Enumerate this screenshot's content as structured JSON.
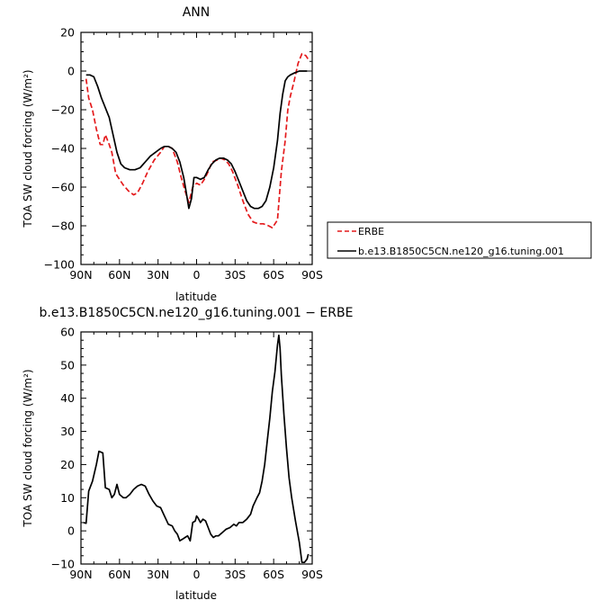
{
  "chart_data": [
    {
      "type": "line",
      "title": "ANN",
      "xlabel": "latitude",
      "ylabel": "TOA SW cloud forcing (W/m²)",
      "xlim": [
        90,
        -90
      ],
      "ylim": [
        -100,
        20
      ],
      "x_ticks": [
        90,
        60,
        30,
        0,
        -30,
        -60,
        -90
      ],
      "x_tick_labels": [
        "90N",
        "60N",
        "30N",
        "0",
        "30S",
        "60S",
        "90S"
      ],
      "y_ticks": [
        -100,
        -80,
        -60,
        -40,
        -20,
        0,
        20
      ],
      "y_tick_labels": [
        "−100",
        "−80",
        "−60",
        "−40",
        "−20",
        "0",
        "20"
      ],
      "legend_position": "right",
      "series": [
        {
          "name": "ERBE",
          "color": "#e41a1c",
          "dash": "dashed",
          "points": [
            [
              86,
              -4
            ],
            [
              84,
              -14
            ],
            [
              81,
              -20
            ],
            [
              78,
              -30
            ],
            [
              75,
              -38
            ],
            [
              73,
              -38
            ],
            [
              71,
              -33
            ],
            [
              68,
              -38
            ],
            [
              66,
              -42
            ],
            [
              63,
              -53
            ],
            [
              60,
              -56
            ],
            [
              57,
              -59
            ],
            [
              53,
              -62
            ],
            [
              49,
              -64
            ],
            [
              46,
              -63
            ],
            [
              42,
              -58
            ],
            [
              38,
              -52
            ],
            [
              33,
              -46
            ],
            [
              28,
              -42
            ],
            [
              25,
              -39
            ],
            [
              22,
              -39
            ],
            [
              19,
              -40
            ],
            [
              15,
              -47
            ],
            [
              12,
              -55
            ],
            [
              9,
              -62
            ],
            [
              6,
              -68
            ],
            [
              3,
              -60
            ],
            [
              0,
              -58
            ],
            [
              -3,
              -59
            ],
            [
              -6,
              -56
            ],
            [
              -9,
              -52
            ],
            [
              -12,
              -47
            ],
            [
              -16,
              -46
            ],
            [
              -19,
              -45
            ],
            [
              -22,
              -46
            ],
            [
              -25,
              -48
            ],
            [
              -28,
              -52
            ],
            [
              -32,
              -59
            ],
            [
              -36,
              -67
            ],
            [
              -40,
              -74
            ],
            [
              -44,
              -78
            ],
            [
              -48,
              -79
            ],
            [
              -52,
              -79
            ],
            [
              -56,
              -80
            ],
            [
              -59,
              -81
            ],
            [
              -63,
              -77
            ],
            [
              -66,
              -52
            ],
            [
              -69,
              -36
            ],
            [
              -71,
              -20
            ],
            [
              -73,
              -13
            ],
            [
              -76,
              -5
            ],
            [
              -79,
              4
            ],
            [
              -82,
              9
            ],
            [
              -85,
              8
            ],
            [
              -87,
              6
            ]
          ]
        },
        {
          "name": "b.e13.B1850C5CN.ne120_g16.tuning.001",
          "color": "#000000",
          "dash": "solid",
          "points": [
            [
              86,
              -2
            ],
            [
              83,
              -2
            ],
            [
              80,
              -3
            ],
            [
              77,
              -8
            ],
            [
              74,
              -14
            ],
            [
              71,
              -19
            ],
            [
              68,
              -24
            ],
            [
              65,
              -33
            ],
            [
              62,
              -42
            ],
            [
              59,
              -48
            ],
            [
              56,
              -50
            ],
            [
              52,
              -51
            ],
            [
              48,
              -51
            ],
            [
              44,
              -50
            ],
            [
              40,
              -47
            ],
            [
              36,
              -44
            ],
            [
              32,
              -42
            ],
            [
              28,
              -40
            ],
            [
              25,
              -39
            ],
            [
              22,
              -39
            ],
            [
              19,
              -40
            ],
            [
              16,
              -42
            ],
            [
              13,
              -47
            ],
            [
              10,
              -55
            ],
            [
              8,
              -63
            ],
            [
              6,
              -71
            ],
            [
              4,
              -66
            ],
            [
              2,
              -55
            ],
            [
              0,
              -55
            ],
            [
              -3,
              -56
            ],
            [
              -6,
              -55
            ],
            [
              -9,
              -51
            ],
            [
              -12,
              -48
            ],
            [
              -15,
              -46
            ],
            [
              -18,
              -45
            ],
            [
              -21,
              -45
            ],
            [
              -24,
              -46
            ],
            [
              -27,
              -48
            ],
            [
              -30,
              -52
            ],
            [
              -33,
              -57
            ],
            [
              -36,
              -62
            ],
            [
              -39,
              -67
            ],
            [
              -42,
              -70
            ],
            [
              -45,
              -71
            ],
            [
              -48,
              -71
            ],
            [
              -51,
              -70
            ],
            [
              -54,
              -67
            ],
            [
              -57,
              -60
            ],
            [
              -60,
              -50
            ],
            [
              -63,
              -36
            ],
            [
              -65,
              -22
            ],
            [
              -67,
              -12
            ],
            [
              -69,
              -5
            ],
            [
              -71,
              -3
            ],
            [
              -73,
              -2
            ],
            [
              -76,
              -1
            ],
            [
              -80,
              0
            ],
            [
              -84,
              0
            ],
            [
              -86,
              0
            ]
          ]
        }
      ]
    },
    {
      "type": "line",
      "title": "b.e13.B1850C5CN.ne120_g16.tuning.001 − ERBE",
      "xlabel": "latitude",
      "ylabel": "TOA SW cloud forcing (W/m²)",
      "xlim": [
        90,
        -90
      ],
      "ylim": [
        -10,
        60
      ],
      "x_ticks": [
        90,
        60,
        30,
        0,
        -30,
        -60,
        -90
      ],
      "x_tick_labels": [
        "90N",
        "60N",
        "30N",
        "0",
        "30S",
        "60S",
        "90S"
      ],
      "y_ticks": [
        -10,
        0,
        10,
        20,
        30,
        40,
        50,
        60
      ],
      "y_tick_labels": [
        "−10",
        "0",
        "10",
        "20",
        "30",
        "40",
        "50",
        "60"
      ],
      "series": [
        {
          "color": "#000000",
          "dash": "solid",
          "points": [
            [
              88,
              2.5
            ],
            [
              86,
              2.3
            ],
            [
              84,
              12
            ],
            [
              81,
              15
            ],
            [
              78,
              20
            ],
            [
              76,
              24
            ],
            [
              73,
              23.5
            ],
            [
              71,
              13
            ],
            [
              68,
              12.5
            ],
            [
              66,
              10
            ],
            [
              64,
              11
            ],
            [
              62,
              14
            ],
            [
              60,
              11
            ],
            [
              57,
              10
            ],
            [
              55,
              10
            ],
            [
              52,
              11
            ],
            [
              49,
              12.5
            ],
            [
              46,
              13.5
            ],
            [
              43,
              14
            ],
            [
              40,
              13.5
            ],
            [
              37,
              11
            ],
            [
              34,
              9
            ],
            [
              31,
              7.5
            ],
            [
              28,
              7
            ],
            [
              25,
              4.5
            ],
            [
              22,
              2
            ],
            [
              19,
              1.5
            ],
            [
              17,
              0
            ],
            [
              15,
              -1
            ],
            [
              13,
              -3
            ],
            [
              11,
              -2.5
            ],
            [
              9,
              -2
            ],
            [
              7,
              -1.5
            ],
            [
              5,
              -3
            ],
            [
              3,
              2.5
            ],
            [
              1,
              3
            ],
            [
              0,
              4.5
            ],
            [
              -1,
              4
            ],
            [
              -3,
              2.5
            ],
            [
              -5,
              3.5
            ],
            [
              -7,
              3
            ],
            [
              -9,
              1
            ],
            [
              -11,
              -1
            ],
            [
              -13,
              -2
            ],
            [
              -15,
              -1.5
            ],
            [
              -17,
              -1.5
            ],
            [
              -20,
              -0.5
            ],
            [
              -23,
              0.5
            ],
            [
              -26,
              1
            ],
            [
              -29,
              2
            ],
            [
              -31,
              1.5
            ],
            [
              -33,
              2.5
            ],
            [
              -36,
              2.5
            ],
            [
              -39,
              3.5
            ],
            [
              -42,
              5
            ],
            [
              -44,
              7.5
            ],
            [
              -47,
              10
            ],
            [
              -49,
              11.5
            ],
            [
              -51,
              15
            ],
            [
              -53,
              20
            ],
            [
              -55,
              27
            ],
            [
              -57,
              34
            ],
            [
              -59,
              42
            ],
            [
              -61,
              48
            ],
            [
              -63,
              56
            ],
            [
              -64,
              59
            ],
            [
              -65,
              55
            ],
            [
              -66,
              47
            ],
            [
              -68,
              35
            ],
            [
              -70,
              25
            ],
            [
              -72,
              16
            ],
            [
              -74,
              10
            ],
            [
              -77,
              3
            ],
            [
              -80,
              -3.5
            ],
            [
              -82,
              -9.5
            ],
            [
              -84,
              -9.5
            ],
            [
              -86,
              -8.5
            ],
            [
              -87,
              -7
            ]
          ]
        }
      ]
    }
  ]
}
